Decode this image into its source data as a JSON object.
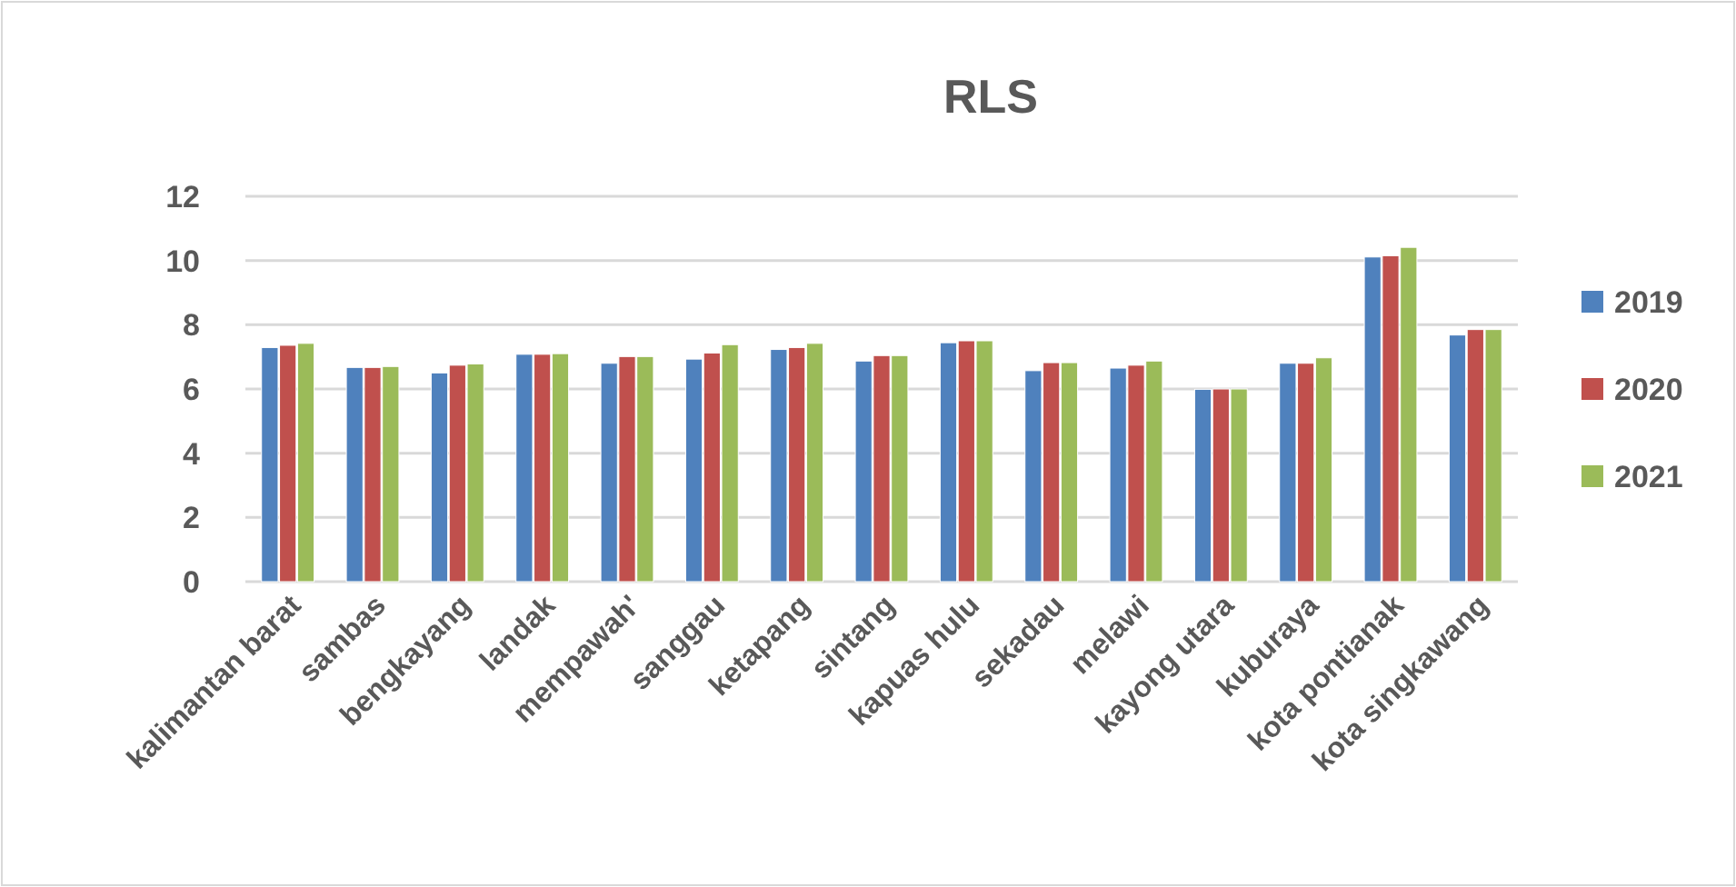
{
  "chart_data": {
    "type": "bar",
    "title": "RLS",
    "categories": [
      "kalimantan barat",
      "sambas",
      "bengkayang",
      "landak",
      "mempawah'",
      "sanggau",
      "ketapang",
      "sintang",
      "kapuas hulu",
      "sekadau",
      "melawi",
      "kayong utara",
      "kuburaya",
      "kota pontianak",
      "kota singkawang"
    ],
    "series": [
      {
        "name": "2019",
        "color": "#4f81bd",
        "values": [
          7.29,
          6.67,
          6.5,
          7.08,
          6.8,
          6.93,
          7.23,
          6.87,
          7.44,
          6.57,
          6.65,
          5.99,
          6.8,
          10.11,
          7.68
        ]
      },
      {
        "name": "2020",
        "color": "#c0504d",
        "values": [
          7.36,
          6.67,
          6.74,
          7.08,
          7.01,
          7.12,
          7.29,
          7.04,
          7.5,
          6.82,
          6.74,
          6.0,
          6.8,
          10.15,
          7.85
        ]
      },
      {
        "name": "2021",
        "color": "#9bbb59",
        "values": [
          7.42,
          6.7,
          6.78,
          7.1,
          7.01,
          7.38,
          7.42,
          7.04,
          7.5,
          6.82,
          6.87,
          6.0,
          6.97,
          10.41,
          7.85
        ]
      }
    ],
    "ylim": [
      0,
      12
    ],
    "yticks": [
      0,
      2,
      4,
      6,
      8,
      10,
      12
    ],
    "grid": "y",
    "legend": "right"
  }
}
